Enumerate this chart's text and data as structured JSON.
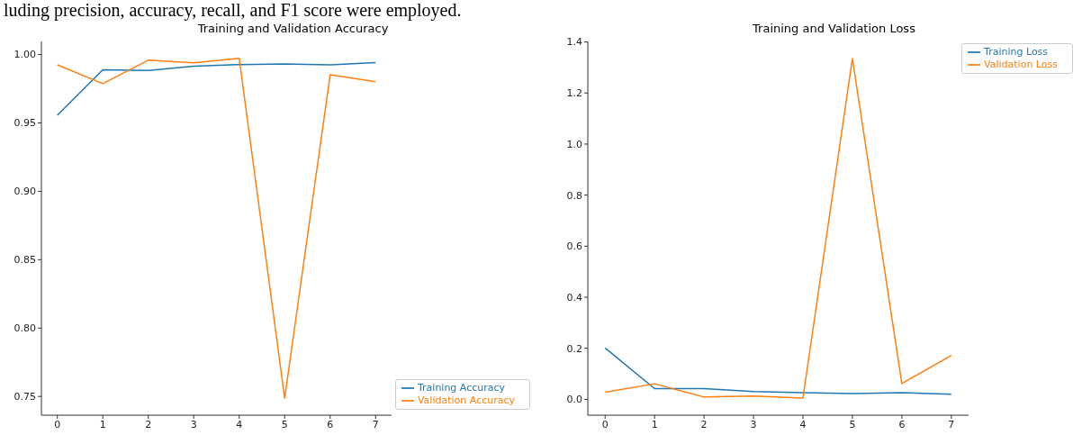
{
  "chart_data": [
    {
      "type": "line",
      "title": "Training and Validation Accuracy",
      "annotations": [
        "luding precision, accuracy, recall, and F1 score were employed."
      ],
      "x": [
        0,
        1,
        2,
        3,
        4,
        5,
        6,
        7
      ],
      "series": [
        {
          "name": "Training Accuracy",
          "color": "#1f77b4",
          "values": [
            0.9556,
            0.9888,
            0.9883,
            0.9915,
            0.9927,
            0.9931,
            0.9925,
            0.9942
          ]
        },
        {
          "name": "Validation Accuracy",
          "color": "#ff7f0e",
          "values": [
            0.9925,
            0.9787,
            0.9959,
            0.994,
            0.9972,
            0.7487,
            0.9852,
            0.9801
          ]
        }
      ],
      "xlim": [
        -0.35,
        7.35
      ],
      "xticks": [
        0,
        1,
        2,
        3,
        4,
        5,
        6,
        7
      ],
      "ylim": [
        0.7363,
        1.0096
      ],
      "yticks": [
        {
          "value": 0.75,
          "label": "0.75"
        },
        {
          "value": 0.8,
          "label": "0.80"
        },
        {
          "value": 0.85,
          "label": "0.85"
        },
        {
          "value": 0.9,
          "label": "0.90"
        },
        {
          "value": 0.95,
          "label": "0.95"
        },
        {
          "value": 1,
          "label": "1.00"
        }
      ],
      "grid": false,
      "legend": "bottom right",
      "marker": "none",
      "line_style": "solid"
    },
    {
      "type": "line",
      "title": "Training and Validation Loss",
      "x": [
        0,
        1,
        2,
        3,
        4,
        5,
        6,
        7
      ],
      "series": [
        {
          "name": "Training Loss",
          "color": "#1f77b4",
          "values": [
            0.201,
            0.042,
            0.042,
            0.031,
            0.026,
            0.023,
            0.026,
            0.02
          ]
        },
        {
          "name": "Validation Loss",
          "color": "#ff7f0e",
          "values": [
            0.028,
            0.061,
            0.009,
            0.013,
            0.005,
            1.335,
            0.062,
            0.172
          ]
        }
      ],
      "xlim": [
        -0.35,
        7.35
      ],
      "xticks": [
        0,
        1,
        2,
        3,
        4,
        5,
        6,
        7
      ],
      "ylim": [
        -0.062,
        1.402
      ],
      "yticks": [
        {
          "value": 0,
          "label": "0.0"
        },
        {
          "value": 0.2,
          "label": "0.2"
        },
        {
          "value": 0.4,
          "label": "0.4"
        },
        {
          "value": 0.6,
          "label": "0.6"
        },
        {
          "value": 0.8,
          "label": "0.8"
        },
        {
          "value": 1,
          "label": "1.0"
        },
        {
          "value": 1.2,
          "label": "1.2"
        },
        {
          "value": 1.4,
          "label": "1.4"
        }
      ],
      "grid": false,
      "legend": "top right",
      "marker": "none",
      "line_style": "solid"
    }
  ]
}
